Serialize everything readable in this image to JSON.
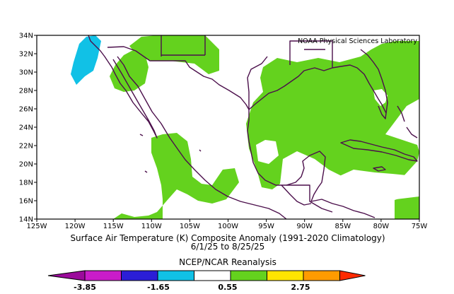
{
  "map": {
    "credit": "NOAA Physical Sciences Laboratory",
    "lon_ticks": [
      "125W",
      "120W",
      "115W",
      "110W",
      "105W",
      "100W",
      "95W",
      "90W",
      "85W",
      "80W",
      "75W"
    ],
    "lat_ticks": [
      "14N",
      "16N",
      "18N",
      "20N",
      "22N",
      "24N",
      "26N",
      "28N",
      "30N",
      "32N",
      "34N"
    ],
    "colors": {
      "frame": "#000000",
      "border": "#4b0f4b",
      "positive_anomaly": "#64d21e",
      "negative_anomaly": "#11c1e6"
    }
  },
  "caption": {
    "title": "Surface Air Temperature (K) Composite Anomaly (1991-2020 Climatology)",
    "dates": "6/1/25   to 8/25/25",
    "source": "NCEP/NCAR Reanalysis"
  },
  "colorbar": {
    "labels": [
      "-3.85",
      "-1.65",
      "0.55",
      "2.75"
    ],
    "colors": [
      "#9b0b9b",
      "#c91cc9",
      "#2b1ed6",
      "#11c1e6",
      "#ffffff",
      "#64d21e",
      "#ffe400",
      "#ff9b00",
      "#ff2a00"
    ]
  }
}
